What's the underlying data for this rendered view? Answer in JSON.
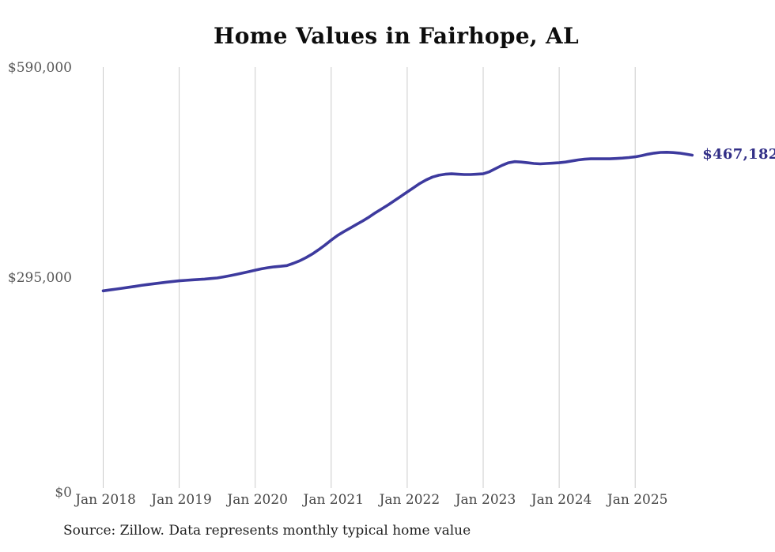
{
  "page": {
    "title": "Home Values in Fairhope, AL",
    "source_note": "Source: Zillow. Data represents monthly typical home value"
  },
  "colors": {
    "line": "#3d3a9e",
    "end_label": "#322f87",
    "gridline": "#cbcbcb",
    "y_tick_text": "#585858",
    "x_tick_text": "#464646",
    "title_text": "#0d0d0d",
    "source_text": "#1f1f1f",
    "background": "#ffffff"
  },
  "chart_data": {
    "type": "line",
    "title": "Home Values in Fairhope, AL",
    "xlabel": "",
    "ylabel": "",
    "ylim": [
      0,
      590000
    ],
    "grid": "vertical-only",
    "legend": "none",
    "x_tick_labels": [
      "Jan 2018",
      "Jan 2019",
      "Jan 2020",
      "Jan 2021",
      "Jan 2022",
      "Jan 2023",
      "Jan 2024",
      "Jan 2025"
    ],
    "y_ticks": [
      {
        "label": "$0",
        "value": 0
      },
      {
        "label": "$295,000",
        "value": 295000
      },
      {
        "label": "$590,000",
        "value": 590000
      }
    ],
    "x_start_month": "2018-01",
    "x_end_month": "2025-10",
    "points_per_year": 12,
    "end_annotation": {
      "label": "$467,182",
      "value": 467182
    },
    "series": [
      {
        "name": "Monthly typical home value (USD)",
        "values": [
          277000,
          278200,
          279400,
          280600,
          281900,
          283200,
          284600,
          285800,
          286900,
          288000,
          289100,
          290100,
          291000,
          291700,
          292300,
          292900,
          293500,
          294200,
          295000,
          296500,
          298200,
          300000,
          301900,
          303900,
          306000,
          307800,
          309400,
          310600,
          311400,
          312400,
          315500,
          319000,
          323500,
          328500,
          334500,
          341000,
          348000,
          354500,
          360000,
          365000,
          370000,
          375000,
          380500,
          386500,
          392000,
          397500,
          403500,
          409500,
          415500,
          421500,
          427500,
          432500,
          436500,
          439000,
          440500,
          441000,
          440500,
          440000,
          440000,
          440500,
          441000,
          444000,
          448500,
          453000,
          456500,
          458000,
          457500,
          456500,
          455500,
          455000,
          455500,
          456000,
          456500,
          457500,
          459000,
          460500,
          461500,
          462000,
          462000,
          462000,
          462000,
          462500,
          463000,
          463800,
          464800,
          466500,
          468500,
          470000,
          471000,
          471200,
          470800,
          470000,
          468700,
          467182
        ]
      }
    ]
  }
}
